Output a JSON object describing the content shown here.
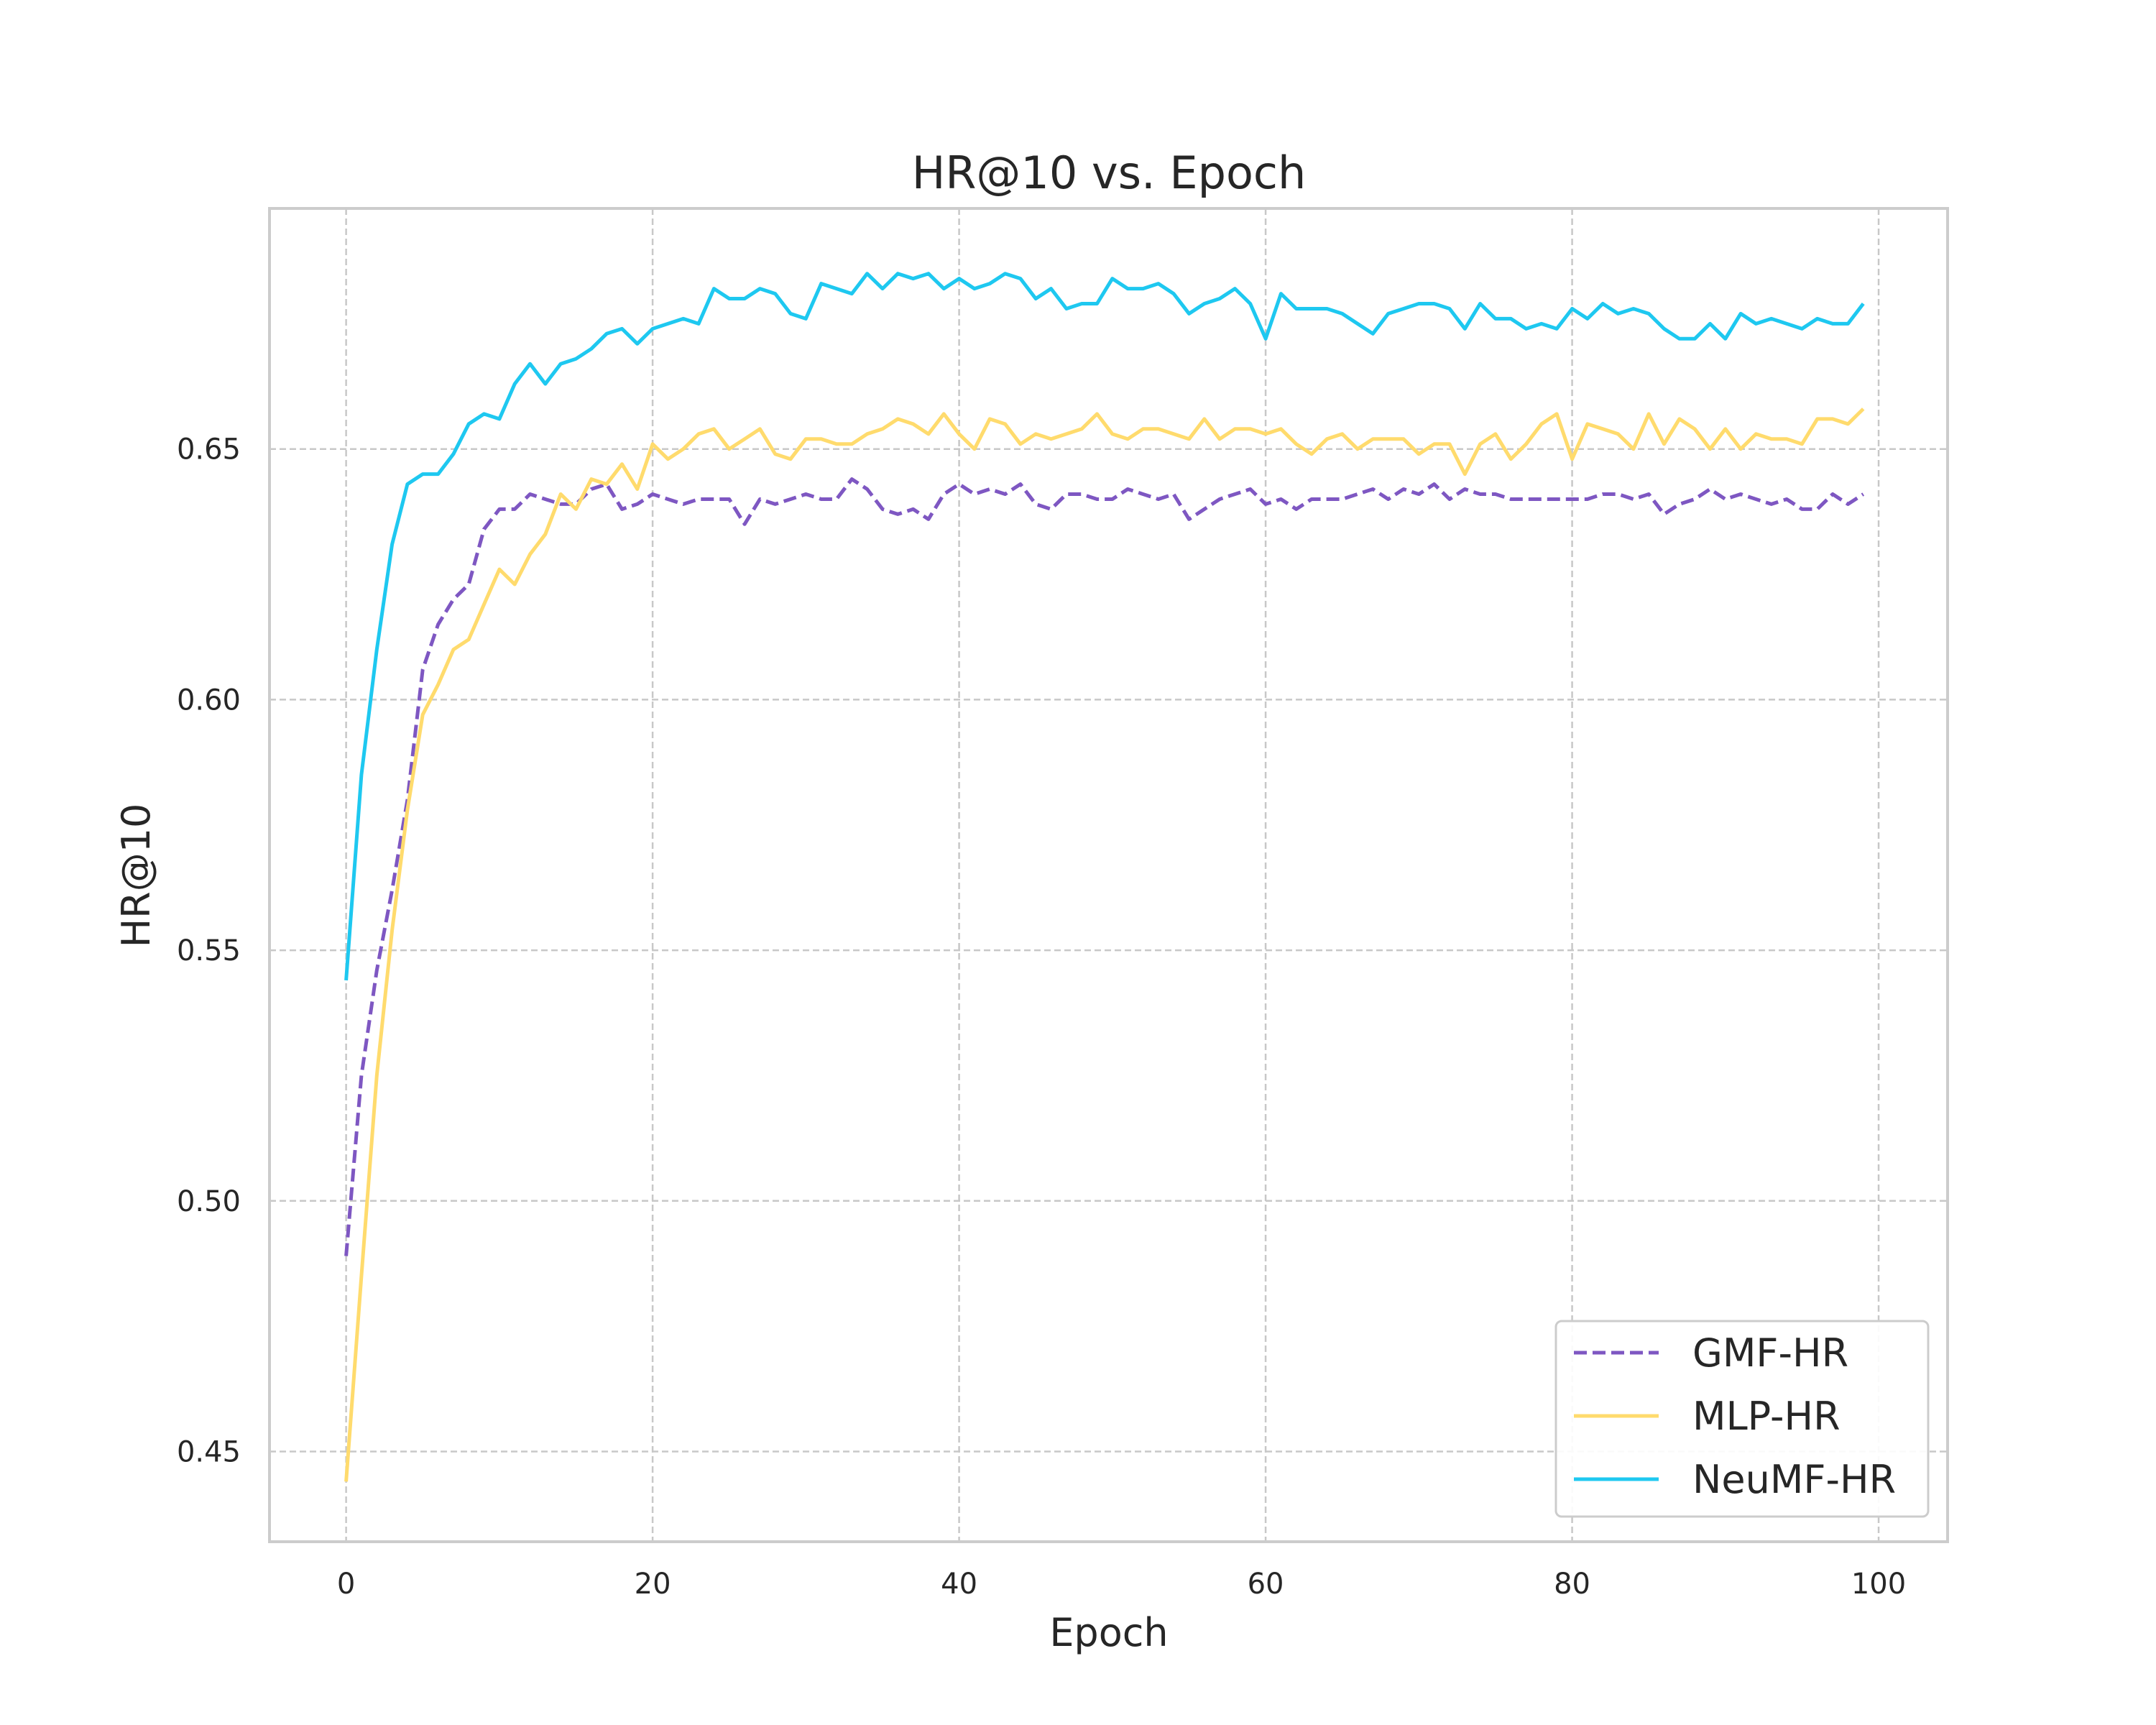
{
  "chart_data": {
    "type": "line",
    "title": "HR@10 vs. Epoch",
    "xlabel": "Epoch",
    "ylabel": "HR@10",
    "xlim": [
      -5,
      104.5
    ],
    "ylim": [
      0.432,
      0.698
    ],
    "xticks": [
      0,
      20,
      40,
      60,
      80,
      100
    ],
    "xtick_labels": [
      "0",
      "20",
      "40",
      "60",
      "80",
      "100"
    ],
    "yticks": [
      0.45,
      0.5,
      0.55,
      0.6,
      0.65
    ],
    "ytick_labels": [
      "0.45",
      "0.50",
      "0.55",
      "0.60",
      "0.65"
    ],
    "grid": true,
    "legend_position": "lower right",
    "series": [
      {
        "name": "GMF-HR",
        "color": "#7e57c2",
        "dashed": true,
        "values": [
          0.489,
          0.525,
          0.546,
          0.562,
          0.58,
          0.606,
          0.615,
          0.62,
          0.623,
          0.634,
          0.638,
          0.638,
          0.641,
          0.64,
          0.639,
          0.639,
          0.642,
          0.643,
          0.638,
          0.639,
          0.641,
          0.64,
          0.639,
          0.64,
          0.64,
          0.64,
          0.635,
          0.64,
          0.639,
          0.64,
          0.641,
          0.64,
          0.64,
          0.644,
          0.642,
          0.638,
          0.637,
          0.638,
          0.636,
          0.641,
          0.643,
          0.641,
          0.642,
          0.641,
          0.643,
          0.639,
          0.638,
          0.641,
          0.641,
          0.64,
          0.64,
          0.642,
          0.641,
          0.64,
          0.641,
          0.636,
          0.638,
          0.64,
          0.641,
          0.642,
          0.639,
          0.64,
          0.638,
          0.64,
          0.64,
          0.64,
          0.641,
          0.642,
          0.64,
          0.642,
          0.641,
          0.643,
          0.64,
          0.642,
          0.641,
          0.641,
          0.64,
          0.64,
          0.64,
          0.64,
          0.64,
          0.64,
          0.641,
          0.641,
          0.64,
          0.641,
          0.637,
          0.639,
          0.64,
          0.642,
          0.64,
          0.641,
          0.64,
          0.639,
          0.64,
          0.638,
          0.638,
          0.641,
          0.639,
          0.641
        ]
      },
      {
        "name": "MLP-HR",
        "color": "#ffdb6d",
        "dashed": false,
        "values": [
          0.444,
          0.485,
          0.525,
          0.554,
          0.578,
          0.597,
          0.603,
          0.61,
          0.612,
          0.619,
          0.626,
          0.623,
          0.629,
          0.633,
          0.641,
          0.638,
          0.644,
          0.643,
          0.647,
          0.642,
          0.651,
          0.648,
          0.65,
          0.653,
          0.654,
          0.65,
          0.652,
          0.654,
          0.649,
          0.648,
          0.652,
          0.652,
          0.651,
          0.651,
          0.653,
          0.654,
          0.656,
          0.655,
          0.653,
          0.657,
          0.653,
          0.65,
          0.656,
          0.655,
          0.651,
          0.653,
          0.652,
          0.653,
          0.654,
          0.657,
          0.653,
          0.652,
          0.654,
          0.654,
          0.653,
          0.652,
          0.656,
          0.652,
          0.654,
          0.654,
          0.653,
          0.654,
          0.651,
          0.649,
          0.652,
          0.653,
          0.65,
          0.652,
          0.652,
          0.652,
          0.649,
          0.651,
          0.651,
          0.645,
          0.651,
          0.653,
          0.648,
          0.651,
          0.655,
          0.657,
          0.648,
          0.655,
          0.654,
          0.653,
          0.65,
          0.657,
          0.651,
          0.656,
          0.654,
          0.65,
          0.654,
          0.65,
          0.653,
          0.652,
          0.652,
          0.651,
          0.656,
          0.656,
          0.655,
          0.658
        ]
      },
      {
        "name": "NeuMF-HR",
        "color": "#1ec8f0",
        "dashed": false,
        "values": [
          0.544,
          0.585,
          0.61,
          0.631,
          0.643,
          0.645,
          0.645,
          0.649,
          0.655,
          0.657,
          0.656,
          0.663,
          0.667,
          0.663,
          0.667,
          0.668,
          0.67,
          0.673,
          0.674,
          0.671,
          0.674,
          0.675,
          0.676,
          0.675,
          0.682,
          0.68,
          0.68,
          0.682,
          0.681,
          0.677,
          0.676,
          0.683,
          0.682,
          0.681,
          0.685,
          0.682,
          0.685,
          0.684,
          0.685,
          0.682,
          0.684,
          0.682,
          0.683,
          0.685,
          0.684,
          0.68,
          0.682,
          0.678,
          0.679,
          0.679,
          0.684,
          0.682,
          0.682,
          0.683,
          0.681,
          0.677,
          0.679,
          0.68,
          0.682,
          0.679,
          0.672,
          0.681,
          0.678,
          0.678,
          0.678,
          0.677,
          0.675,
          0.673,
          0.677,
          0.678,
          0.679,
          0.679,
          0.678,
          0.674,
          0.679,
          0.676,
          0.676,
          0.674,
          0.675,
          0.674,
          0.678,
          0.676,
          0.679,
          0.677,
          0.678,
          0.677,
          0.674,
          0.672,
          0.672,
          0.675,
          0.672,
          0.677,
          0.675,
          0.676,
          0.675,
          0.674,
          0.676,
          0.675,
          0.675,
          0.679
        ]
      }
    ]
  }
}
